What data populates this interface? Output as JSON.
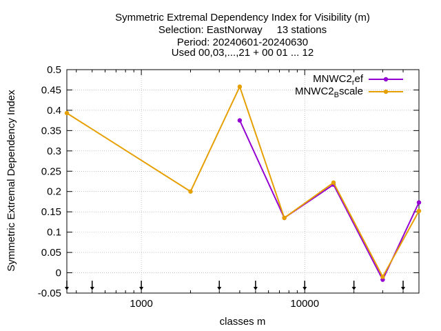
{
  "chart_data": {
    "type": "line",
    "title_lines": [
      "Symmetric Extremal Dependency Index  for Visibility (m)",
      "Selection: EastNorway     13 stations",
      "Period: 20240601-20240630",
      "Used 00,03,...,21 + 00 01 ... 12"
    ],
    "xlabel": "classes m",
    "ylabel": "Symmetric Extremal Dependency Index",
    "x_scale": "log",
    "xlim": [
      350,
      50000
    ],
    "ylim": [
      -0.05,
      0.5
    ],
    "y_ticks": [
      -0.05,
      0,
      0.05,
      0.1,
      0.15,
      0.2,
      0.25,
      0.3,
      0.35,
      0.4,
      0.45,
      0.5
    ],
    "y_tick_labels": [
      "-0.05",
      "0",
      "0.05",
      "0.1",
      "0.15",
      "0.2",
      "0.25",
      "0.3",
      "0.35",
      "0.4",
      "0.45",
      "0.5"
    ],
    "x_ticks": [
      1000,
      10000
    ],
    "x_tick_labels": [
      "1000",
      "10000"
    ],
    "class_markers": [
      350,
      500,
      1000,
      3000,
      5000,
      10000,
      20000,
      40000
    ],
    "grid": true,
    "legend_position": "top-right",
    "series": [
      {
        "name_main": "MNWC2",
        "name_sub": "r",
        "name_rest": "ef",
        "color": "#9400d3",
        "x": [
          4000,
          7500,
          15000,
          30000,
          50000
        ],
        "y": [
          0.375,
          0.135,
          0.217,
          -0.017,
          0.173
        ]
      },
      {
        "name_main": "MNWC2",
        "name_sub": "B",
        "name_rest": "scale",
        "color": "#e69f00",
        "x": [
          350,
          2000,
          4000,
          7500,
          15000,
          30000,
          50000
        ],
        "y": [
          0.393,
          0.2,
          0.458,
          0.135,
          0.222,
          -0.01,
          0.152
        ]
      }
    ]
  }
}
